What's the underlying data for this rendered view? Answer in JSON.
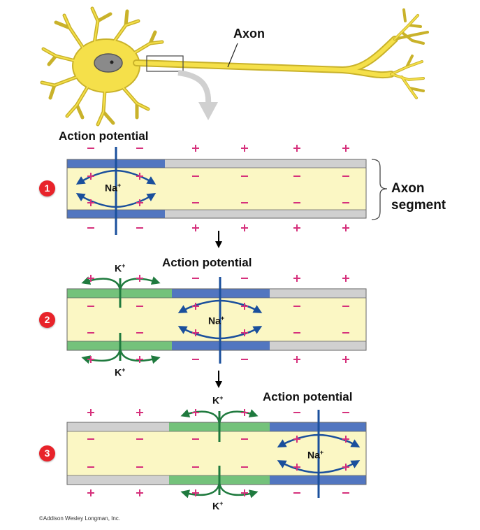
{
  "labels": {
    "axon": "Axon",
    "axon_segment_line1": "Axon",
    "axon_segment_line2": "segment",
    "action_potential": "Action potential",
    "na": "Na",
    "k": "K",
    "ion_charge": "+",
    "copyright": "©Addison Wesley Longman, Inc."
  },
  "steps": [
    "1",
    "2",
    "3"
  ],
  "colors": {
    "neuron_fill": "#f5e04a",
    "neuron_outline": "#c9b22a",
    "nucleus": "#8a8a8a",
    "cytoplasm": "#fbf7c4",
    "depolarized_membrane": "#5276c0",
    "repolarizing_membrane": "#74c27b",
    "resting_membrane": "#d0d0d0",
    "na_arrow": "#1a4f9c",
    "k_arrow": "#1f7a3e",
    "positive_sign": "#d6317c",
    "negative_sign": "#d6317c",
    "badge": "#e8232a"
  }
}
